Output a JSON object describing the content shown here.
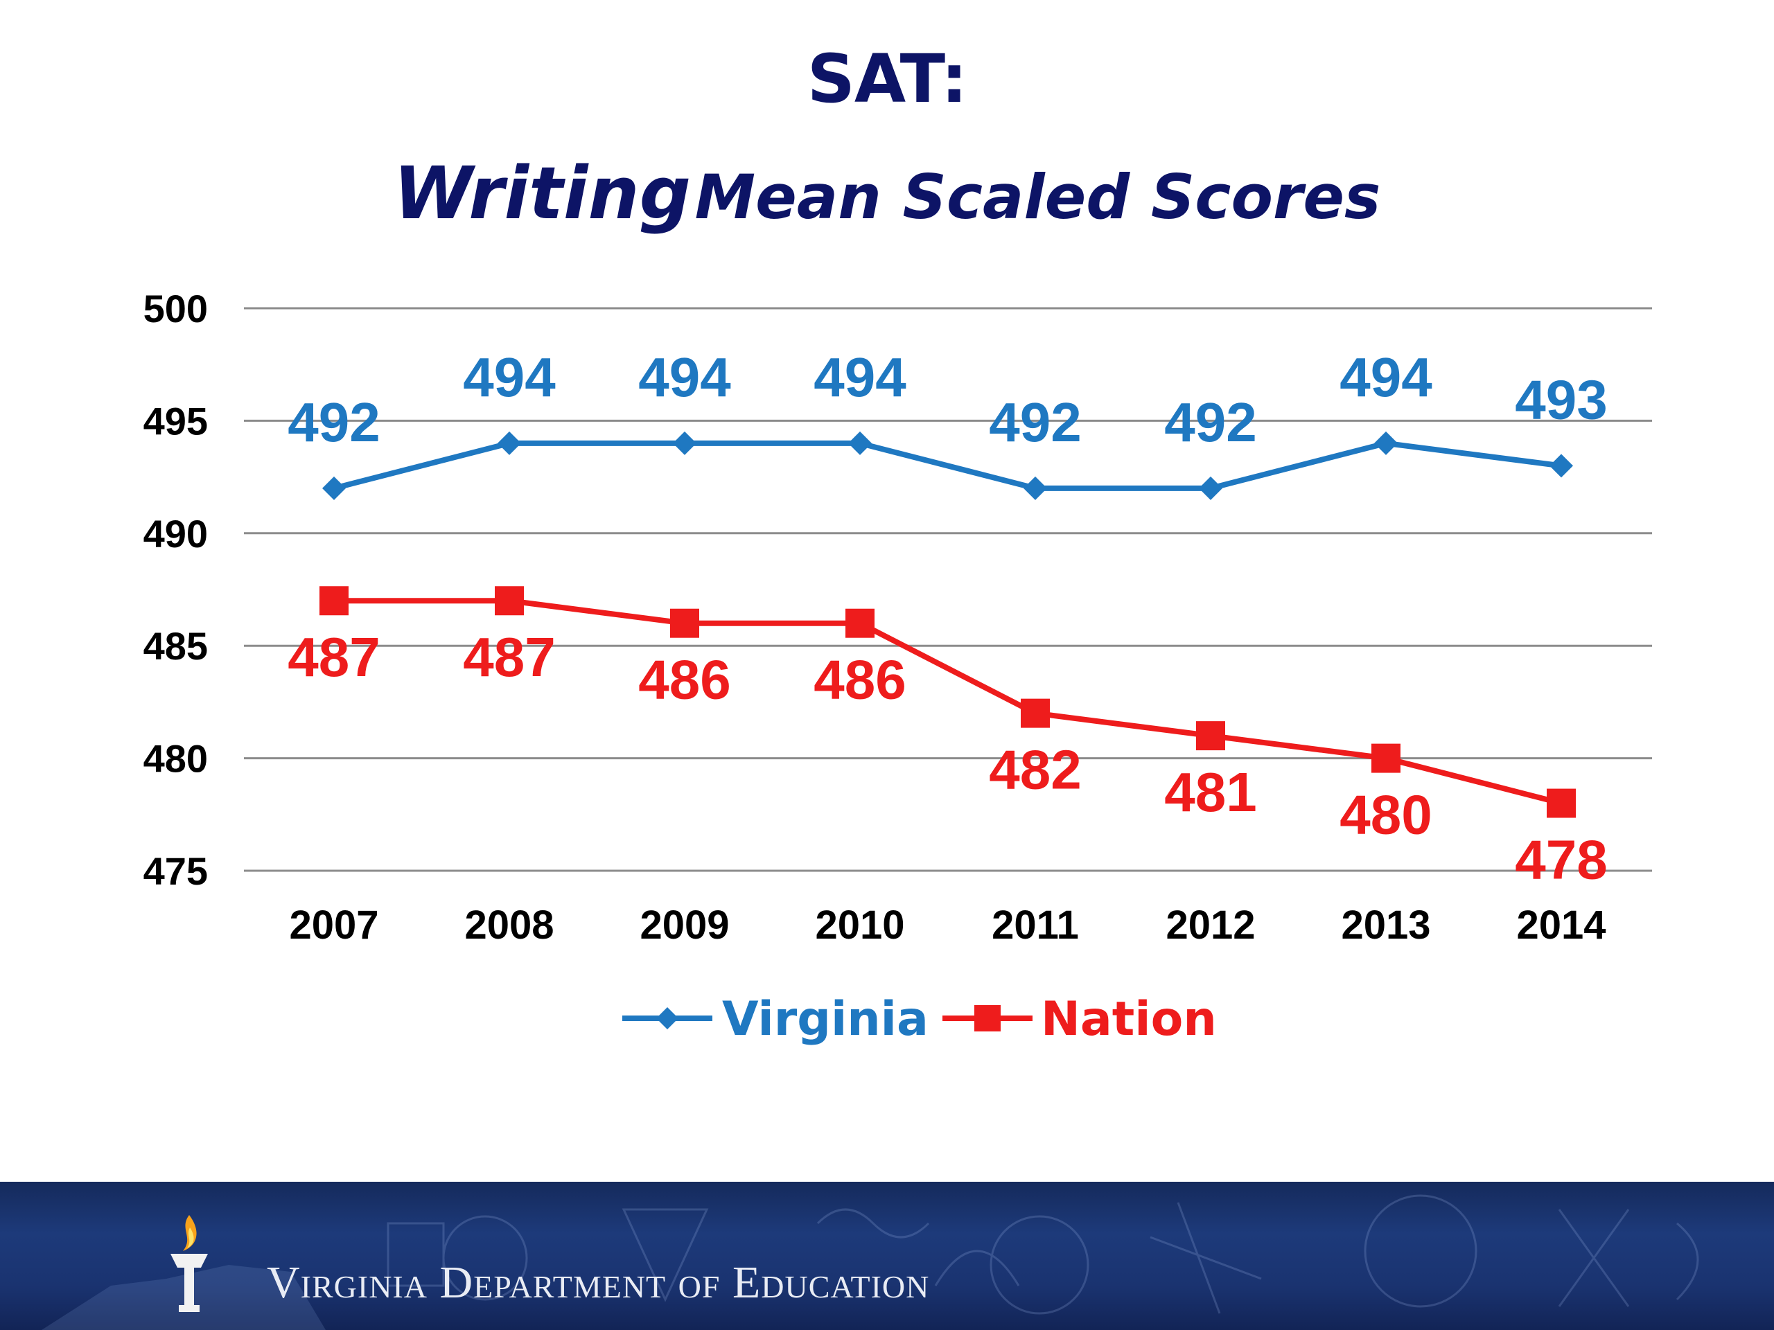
{
  "title": {
    "line1": "SAT:",
    "line2_part1": "Writing",
    "line2_part2": "Mean Scaled Scores"
  },
  "chart_data": {
    "type": "line",
    "categories": [
      "2007",
      "2008",
      "2009",
      "2010",
      "2011",
      "2012",
      "2013",
      "2014"
    ],
    "series": [
      {
        "name": "Virginia",
        "values": [
          492,
          494,
          494,
          494,
          492,
          492,
          494,
          493
        ],
        "color": "#1f78c1",
        "marker": "diamond"
      },
      {
        "name": "Nation",
        "values": [
          487,
          487,
          486,
          486,
          482,
          481,
          480,
          478
        ],
        "color": "#ee1c1c",
        "marker": "square"
      }
    ],
    "ylim": [
      475,
      500
    ],
    "yticks": [
      500,
      495,
      490,
      485,
      480,
      475
    ],
    "grid": true,
    "legend": "bottom-center",
    "data_labels": true
  },
  "footer": {
    "text": "Virginia Department of Education",
    "logo": "torch-icon"
  }
}
